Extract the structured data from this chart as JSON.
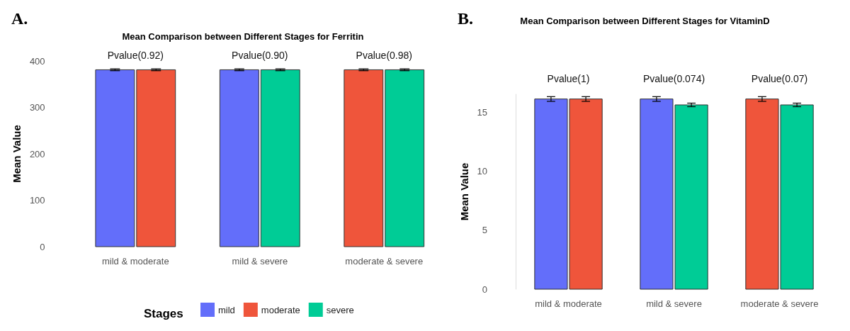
{
  "chart_data": [
    {
      "type": "bar",
      "title": "Mean Comparison between Different Stages for Ferritin",
      "ylabel": "Mean Value",
      "legend_title": "Stages",
      "categories": [
        "mild & moderate",
        "mild & severe",
        "moderate & severe"
      ],
      "series": [
        {
          "name": "mild",
          "color": "#636efa",
          "values": [
            381,
            381,
            null
          ],
          "errors": [
            2,
            2,
            null
          ]
        },
        {
          "name": "moderate",
          "color": "#ef553b",
          "values": [
            381,
            null,
            381
          ],
          "errors": [
            2,
            null,
            2
          ]
        },
        {
          "name": "severe",
          "color": "#00cc96",
          "values": [
            null,
            381,
            381
          ],
          "errors": [
            null,
            2,
            2
          ]
        }
      ],
      "ylim": [
        0,
        400
      ],
      "yticks": [
        0,
        100,
        200,
        300,
        400
      ],
      "grid": false,
      "legend": "bottom",
      "annotations": [
        "A.",
        "Pvalue(0.92)",
        "Pvalue(0.90)",
        "Pvalue(0.98)"
      ]
    },
    {
      "type": "bar",
      "title": "Mean Comparison between Different Stages for VitaminD",
      "ylabel": "Mean Value",
      "categories": [
        "mild & moderate",
        "mild & severe",
        "moderate & severe"
      ],
      "series": [
        {
          "color": "#636efa",
          "values": [
            16.1,
            16.1,
            null
          ],
          "errors": [
            0.2,
            0.2,
            null
          ]
        },
        {
          "color": "#ef553b",
          "values": [
            16.1,
            null,
            16.1
          ],
          "errors": [
            0.2,
            null,
            0.2
          ]
        },
        {
          "color": "#00cc96",
          "values": [
            null,
            15.6,
            15.6
          ],
          "errors": [
            null,
            0.15,
            0.15
          ]
        }
      ],
      "ylim": [
        0,
        16.5
      ],
      "yticks": [
        0,
        5,
        10,
        15
      ],
      "grid": false,
      "legend": false,
      "annotations": [
        "B.",
        "Pvalue(1)",
        "Pvalue(0.074)",
        "Pvalue(0.07)"
      ]
    }
  ]
}
